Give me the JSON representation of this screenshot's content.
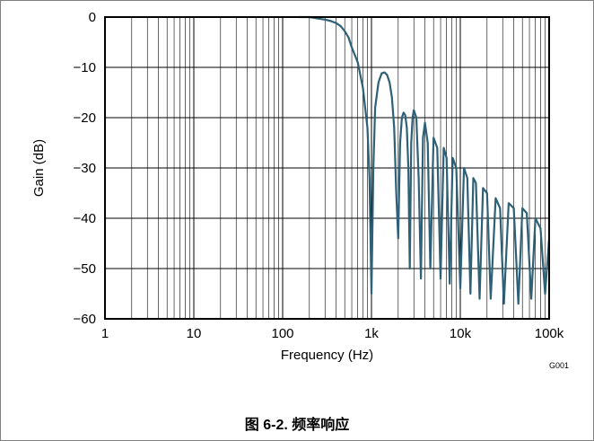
{
  "chart_data": {
    "type": "line",
    "title": "",
    "xlabel": "Frequency (Hz)",
    "ylabel": "Gain (dB)",
    "xscale": "log",
    "xlim": [
      1,
      100000
    ],
    "ylim": [
      -60,
      0
    ],
    "grid": true,
    "legend": "none",
    "line_color": "#2e6077",
    "x_tick_labels": [
      "1",
      "10",
      "100",
      "1k",
      "10k",
      "100k"
    ],
    "x_tick_values": [
      1,
      10,
      100,
      1000,
      10000,
      100000
    ],
    "y_tick_labels": [
      "0",
      "−10",
      "−20",
      "−30",
      "−40",
      "−50",
      "−60"
    ],
    "y_tick_values": [
      0,
      -10,
      -20,
      -30,
      -40,
      -50,
      -60
    ],
    "series": [
      {
        "values_desc": "filter gain response",
        "x": [
          150,
          200,
          250,
          300,
          350,
          400,
          450,
          500,
          550,
          600,
          700,
          800,
          900,
          950,
          1000,
          1050,
          1100,
          1200,
          1300,
          1400,
          1500,
          1600,
          1700,
          1800,
          1900,
          2000,
          2100,
          2200,
          2300,
          2400,
          2500,
          2600,
          2700,
          2800,
          2900,
          3000,
          3200,
          3400,
          3600,
          3800,
          4000,
          4300,
          4600,
          5000,
          5500,
          6000,
          6500,
          7000,
          7600,
          8200,
          9000,
          10000,
          11000,
          12000,
          13000,
          14000,
          15000,
          16500,
          18000,
          20000,
          22000,
          25000,
          28000,
          31000,
          35000,
          40000,
          45000,
          50000,
          56000,
          63000,
          70000,
          80000,
          90000,
          100000
        ],
        "y": [
          0,
          0,
          -0.3,
          -0.5,
          -0.8,
          -1.2,
          -1.8,
          -2.8,
          -4,
          -6,
          -9,
          -14,
          -22,
          -32,
          -55,
          -30,
          -18,
          -13,
          -11.2,
          -11,
          -11.5,
          -13,
          -16,
          -22,
          -35,
          -44,
          -25,
          -20,
          -19,
          -19.5,
          -22,
          -30,
          -50,
          -25,
          -20,
          -18.5,
          -20,
          -32,
          -52,
          -24,
          -21,
          -25,
          -50,
          -24,
          -26,
          -52,
          -26,
          -28,
          -53,
          -28,
          -30,
          -54,
          -30,
          -32,
          -55,
          -32,
          -33,
          -56,
          -34,
          -35,
          -56,
          -36,
          -38,
          -57,
          -37,
          -38,
          -57,
          -38,
          -39,
          -56,
          -40,
          -42,
          -55,
          -44
        ]
      }
    ],
    "figure_id": "G001"
  },
  "caption": "图 6-2. 频率响应"
}
